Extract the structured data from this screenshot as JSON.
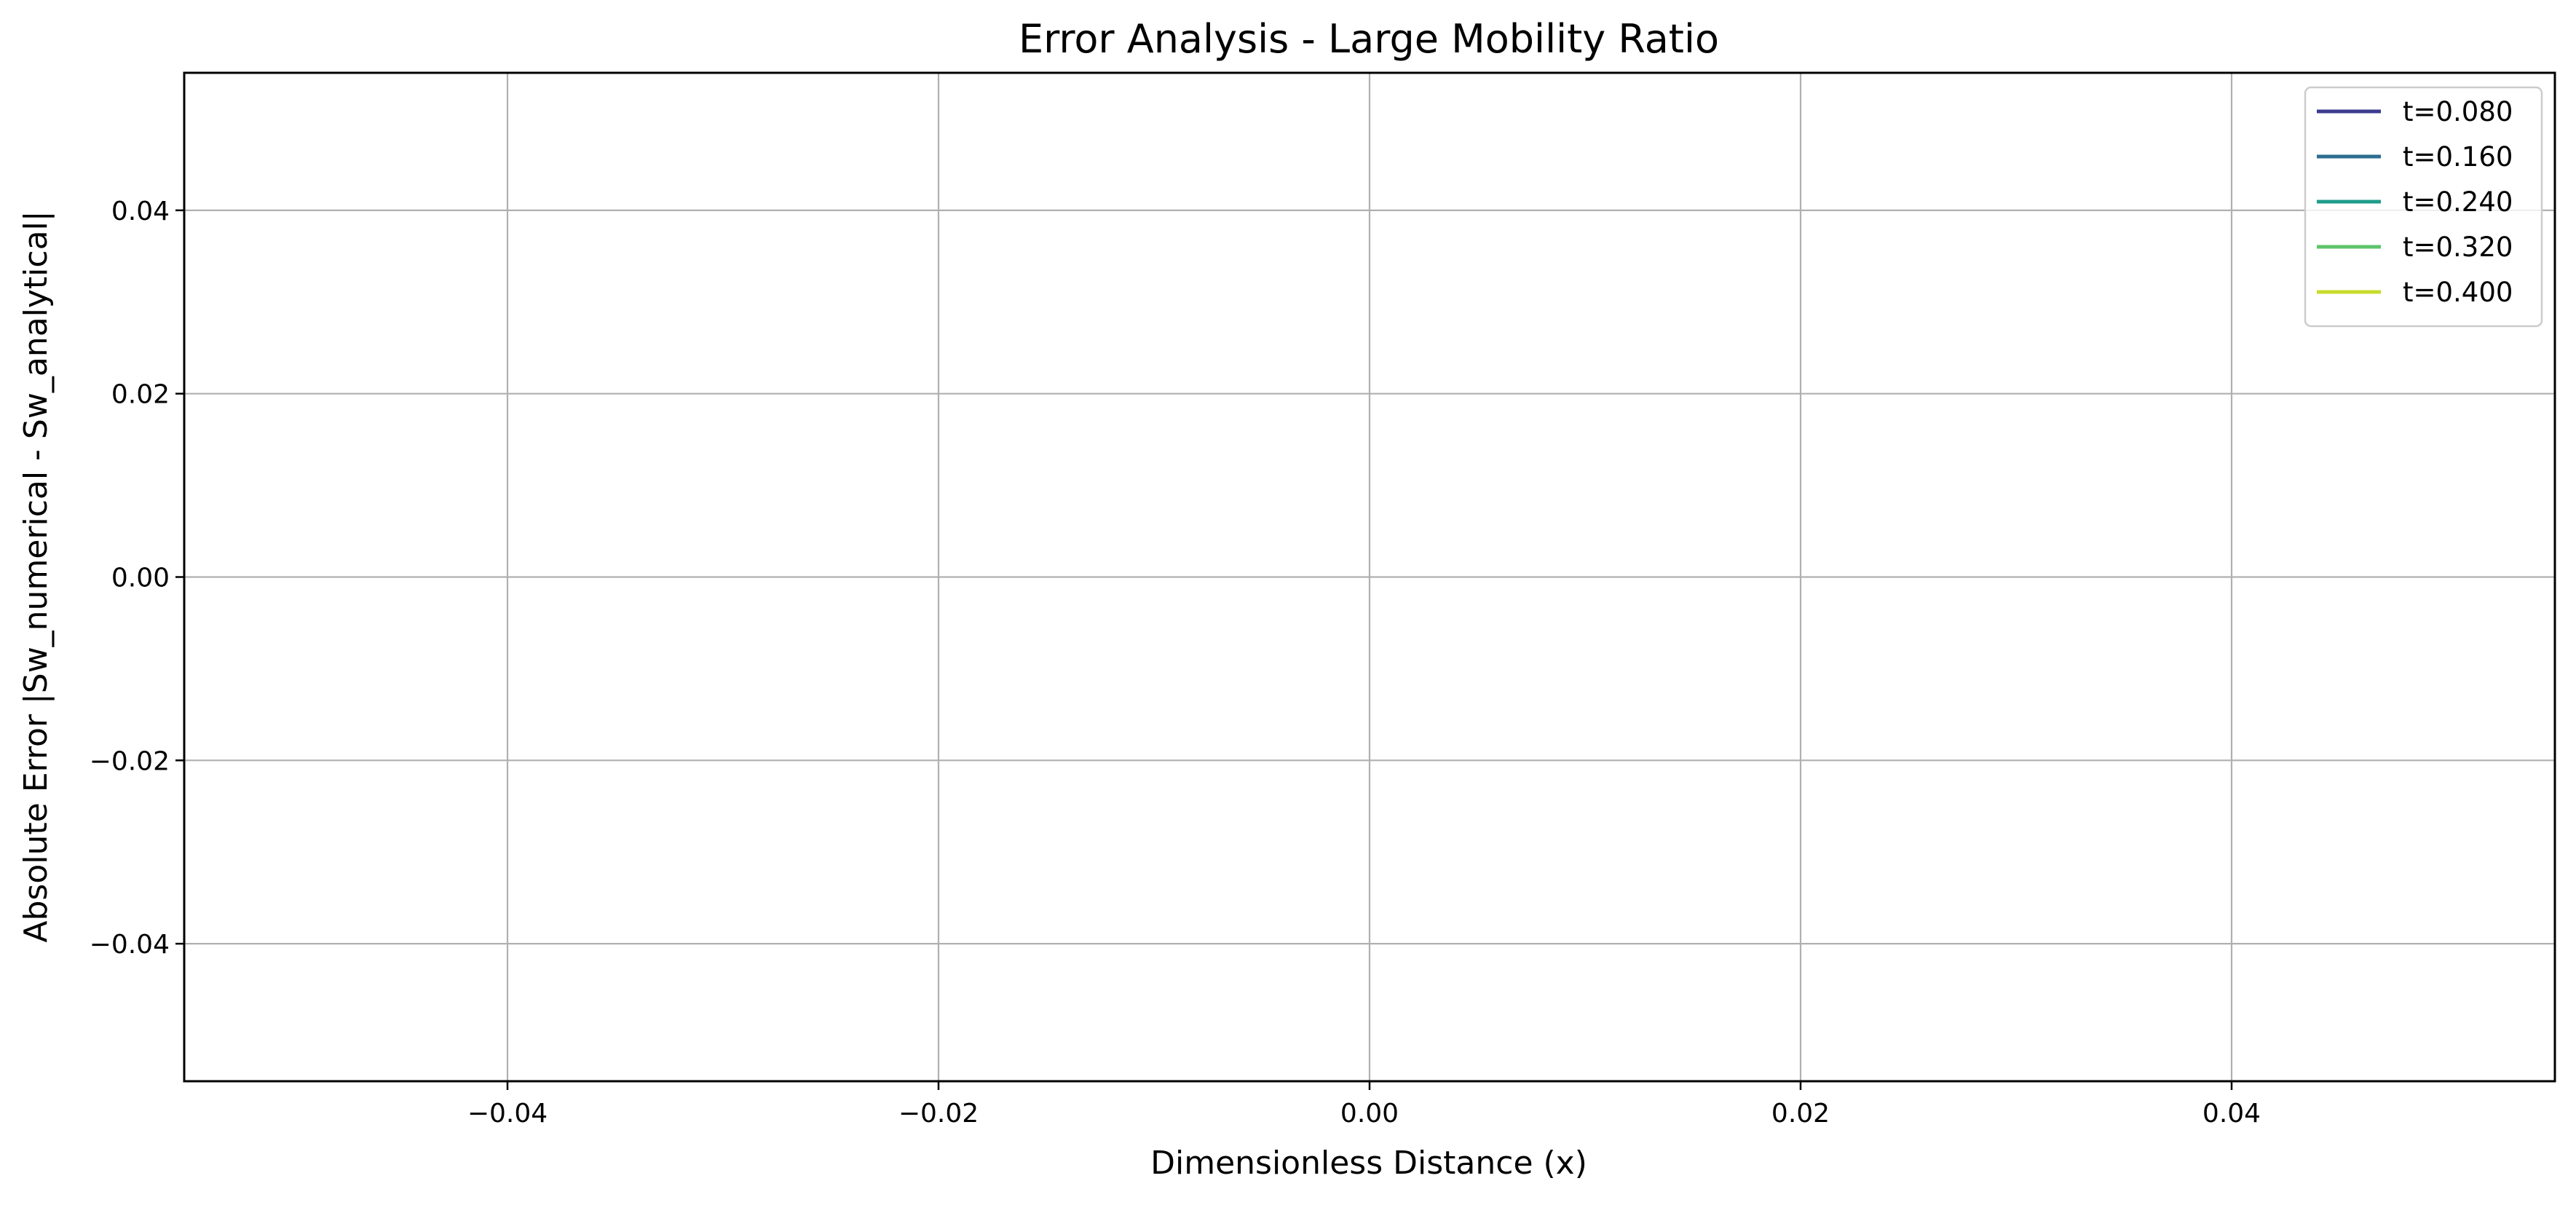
{
  "chart_data": {
    "type": "line",
    "title": "Error Analysis - Large Mobility Ratio",
    "xlabel": "Dimensionless Distance (x)",
    "ylabel": "Absolute Error |Sw_numerical - Sw_analytical|",
    "xlim": [
      -0.055,
      0.055
    ],
    "ylim": [
      -0.055,
      0.055
    ],
    "xticks": [
      -0.04,
      -0.02,
      0.0,
      0.02,
      0.04
    ],
    "xtick_labels": [
      "−0.04",
      "−0.02",
      "0.00",
      "0.02",
      "0.04"
    ],
    "yticks": [
      0.04,
      0.02,
      0.0,
      -0.02,
      -0.04
    ],
    "ytick_labels": [
      "0.04",
      "0.02",
      "0.00",
      "−0.02",
      "−0.04"
    ],
    "grid": true,
    "legend_position": "top-right",
    "series": [
      {
        "name": "t=0.080",
        "color": "#3b3b8f",
        "x": [],
        "y": []
      },
      {
        "name": "t=0.160",
        "color": "#2c6e8f",
        "x": [],
        "y": []
      },
      {
        "name": "t=0.240",
        "color": "#1f9c8a",
        "x": [],
        "y": []
      },
      {
        "name": "t=0.320",
        "color": "#5ec46a",
        "x": [],
        "y": []
      },
      {
        "name": "t=0.400",
        "color": "#c8dc2c",
        "x": [],
        "y": []
      }
    ]
  }
}
